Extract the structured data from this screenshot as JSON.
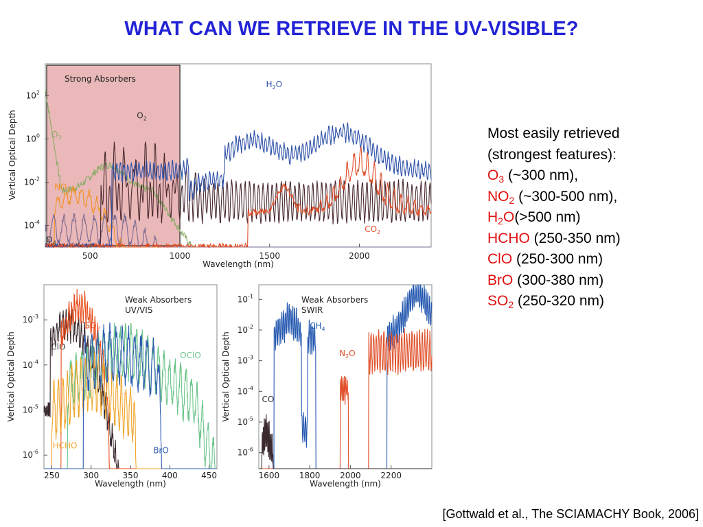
{
  "slide": {
    "title": "WHAT CAN WE RETRIEVE IN THE UV-VISIBLE?",
    "side_text": {
      "intro_line1": "Most easily retrieved",
      "intro_line2": "(strongest features):",
      "items": [
        {
          "species": "O",
          "sub": "3",
          "range": " (~300 nm),"
        },
        {
          "species": "NO",
          "sub": "2",
          "range": " (~300-500 nm),"
        },
        {
          "species": "H",
          "sub": "2",
          "species2": "O",
          "range": "(>500 nm)"
        },
        {
          "species": "HCHO",
          "sub": "",
          "range": " (250-350 nm)"
        },
        {
          "species": "ClO",
          "sub": "",
          "range": " (250-300 nm)"
        },
        {
          "species": "BrO",
          "sub": "",
          "range": " (300-380 nm)"
        },
        {
          "species": "SO",
          "sub": "2",
          "range": " (250-320 nm)"
        }
      ]
    },
    "citation": "[Gottwald et al., The SCIAMACHY Book, 2006]"
  },
  "chart_data": [
    {
      "type": "line",
      "panel": "top",
      "ylabel": "Vertical Optical Depth",
      "xlabel": "Wavelength (nm)",
      "xlim": [
        250,
        2400
      ],
      "ylog": true,
      "ylim": [
        1e-05,
        3000
      ],
      "xticks": [
        500,
        1000,
        1500,
        2000
      ],
      "yticks": [
        {
          "v": 100,
          "l": "10",
          "e": "2"
        },
        {
          "v": 1,
          "l": "10",
          "e": "0"
        },
        {
          "v": 0.01,
          "l": "10",
          "e": "-2"
        },
        {
          "v": 0.0001,
          "l": "10",
          "e": "-4"
        }
      ],
      "highlight": {
        "label": "Strong Absorbers",
        "x_range": [
          250,
          1000
        ],
        "color": "#eab8b8"
      },
      "series": [
        {
          "name": "O3",
          "sub": "3",
          "base": "O",
          "color": "#8cab6a",
          "label_at": [
            285,
            1.2
          ]
        },
        {
          "name": "NO2",
          "sub": "2",
          "base": "NO",
          "color": "#f29224",
          "label_at": [
            300,
            0.0045
          ]
        },
        {
          "name": "O4",
          "sub": "4",
          "base": "O",
          "color": "#7a6a90",
          "label_at": [
            255,
            1.6e-05
          ]
        },
        {
          "name": "O2",
          "sub": "2",
          "base": "O",
          "color": "#4a2a30",
          "label_at": [
            760,
            9
          ]
        },
        {
          "name": "H2O",
          "sub": "2",
          "base": "H",
          "base2": "O",
          "color": "#2f52a8",
          "label_at": [
            1480,
            250
          ]
        },
        {
          "name": "CO2",
          "sub": "2",
          "base": "CO",
          "color": "#e0502a",
          "label_at": [
            2030,
            5e-05
          ]
        }
      ]
    },
    {
      "type": "line",
      "panel": "bottom-left",
      "title": "Weak Absorbers",
      "subtitle": "UV/VIS",
      "ylabel": "Vertical Optical Depth",
      "xlabel": "Wavelength (nm)",
      "xlim": [
        240,
        460
      ],
      "ylog": true,
      "ylim": [
        5e-07,
        0.006
      ],
      "xticks": [
        250,
        300,
        350,
        400,
        450
      ],
      "yticks": [
        {
          "v": 0.001,
          "l": "10",
          "e": "-3"
        },
        {
          "v": 0.0001,
          "l": "10",
          "e": "-4"
        },
        {
          "v": 1e-05,
          "l": "10",
          "e": "-5"
        },
        {
          "v": 1e-06,
          "l": "10",
          "e": "-6"
        }
      ],
      "series": [
        {
          "name": "ClO",
          "base": "ClO",
          "color": "#3a2a2e",
          "label_at": [
            249,
            0.00022
          ]
        },
        {
          "name": "SO2",
          "sub": "2",
          "base": "SO",
          "color": "#e84e1e",
          "label_at": [
            292,
            0.00065
          ]
        },
        {
          "name": "OClO",
          "base": "OClO",
          "color": "#6cc48a",
          "label_at": [
            413,
            0.00014
          ]
        },
        {
          "name": "HCHO",
          "base": "HCHO",
          "color": "#f0a52a",
          "label_at": [
            251,
            1.4e-06
          ]
        },
        {
          "name": "BrO",
          "base": "BrO",
          "color": "#2f5cb0",
          "label_at": [
            379,
            1.1e-06
          ]
        }
      ]
    },
    {
      "type": "line",
      "panel": "bottom-right",
      "title": "Weak Absorbers",
      "subtitle": "SWIR",
      "ylabel": "Vertical Optical Depth",
      "xlabel": "Wavelength (nm)",
      "xlim": [
        1550,
        2400
      ],
      "ylog": true,
      "ylim": [
        3e-07,
        0.3
      ],
      "xticks": [
        1600,
        1800,
        2000,
        2200
      ],
      "yticks": [
        {
          "v": 0.1,
          "l": "10",
          "e": "-1"
        },
        {
          "v": 0.01,
          "l": "10",
          "e": "-2"
        },
        {
          "v": 0.001,
          "l": "10",
          "e": "-3"
        },
        {
          "v": 0.0001,
          "l": "10",
          "e": "-4"
        },
        {
          "v": 1e-05,
          "l": "10",
          "e": "-5"
        },
        {
          "v": 1e-06,
          "l": "10",
          "e": "-6"
        }
      ],
      "series": [
        {
          "name": "CH4",
          "sub": "4",
          "base": "CH",
          "color": "#2458b0",
          "label_at": [
            1800,
            0.011
          ]
        },
        {
          "name": "N2O",
          "sub": "2",
          "base": "N",
          "base2": "O",
          "color": "#e0502a",
          "label_at": [
            1945,
            0.0014
          ]
        },
        {
          "name": "CO",
          "base": "CO",
          "color": "#3a2a2e",
          "label_at": [
            1565,
            4.5e-05
          ]
        }
      ]
    }
  ]
}
